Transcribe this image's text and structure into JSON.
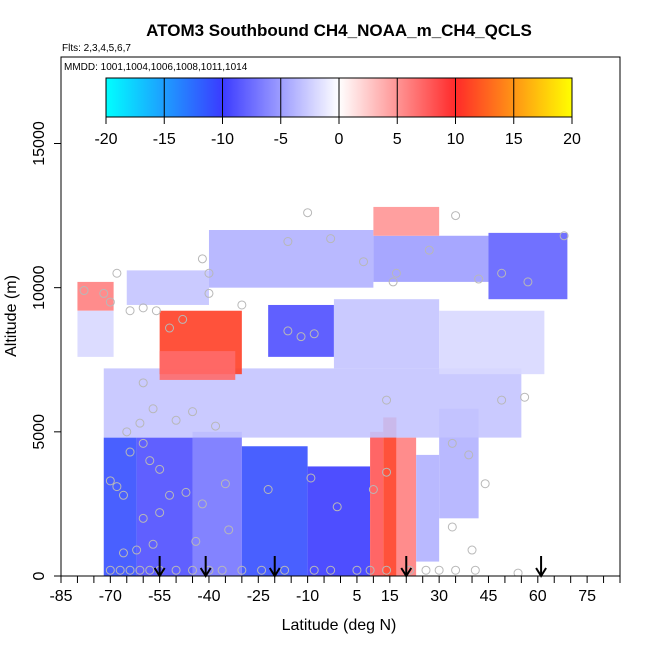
{
  "chart_data": {
    "type": "heatmap",
    "title": "ATOM3 Southbound CH4_NOAA_m_CH4_QCLS",
    "subtitle": "Flts: 2,3,4,5,6,7",
    "annotation": "MMDD: 1001,1004,1006,1008,1011,1014",
    "xlabel": "Latitude (deg N)",
    "ylabel": "Altitude (m)",
    "xlim": [
      -85,
      85
    ],
    "ylim": [
      0,
      18000
    ],
    "x_ticks": [
      -85,
      -70,
      -55,
      -40,
      -25,
      -10,
      5,
      15,
      30,
      45,
      60,
      75
    ],
    "y_ticks": [
      0,
      5000,
      10000,
      15000
    ],
    "colorbar": {
      "min": -20,
      "max": 20,
      "ticks": [
        -20,
        -15,
        -10,
        -5,
        0,
        5,
        10,
        15,
        20
      ],
      "colors": [
        "#00ffff",
        "#3b3bff",
        "#ffffff",
        "#ff2a2a",
        "#ffff00"
      ]
    },
    "arrow_latitudes": [
      -55,
      -41,
      -20,
      20,
      61
    ],
    "cells": [
      {
        "lat0": -80,
        "lat1": -69,
        "alt0": 9200,
        "alt1": 10200,
        "value": 6
      },
      {
        "lat0": -80,
        "lat1": -69,
        "alt0": 7600,
        "alt1": 9200,
        "value": -2
      },
      {
        "lat0": -72,
        "lat1": -62,
        "alt0": 0,
        "alt1": 4800,
        "value": -11
      },
      {
        "lat0": -62,
        "lat1": -45,
        "alt0": 0,
        "alt1": 4800,
        "value": -9
      },
      {
        "lat0": -45,
        "lat1": -30,
        "alt0": 0,
        "alt1": 5000,
        "value": -7
      },
      {
        "lat0": -30,
        "lat1": -10,
        "alt0": 0,
        "alt1": 4500,
        "value": -11
      },
      {
        "lat0": -10,
        "lat1": 9,
        "alt0": 0,
        "alt1": 3800,
        "value": -10
      },
      {
        "lat0": 9,
        "lat1": 13,
        "alt0": 0,
        "alt1": 5000,
        "value": 8
      },
      {
        "lat0": 13,
        "lat1": 17,
        "alt0": 0,
        "alt1": 5500,
        "value": 11
      },
      {
        "lat0": 17,
        "lat1": 23,
        "alt0": 0,
        "alt1": 4800,
        "value": 6
      },
      {
        "lat0": 23,
        "lat1": 30,
        "alt0": 500,
        "alt1": 4200,
        "value": -4
      },
      {
        "lat0": 30,
        "lat1": 42,
        "alt0": 2000,
        "alt1": 5800,
        "value": -4
      },
      {
        "lat0": -72,
        "lat1": 55,
        "alt0": 4800,
        "alt1": 7200,
        "value": -3
      },
      {
        "lat0": -55,
        "lat1": -30,
        "alt0": 7000,
        "alt1": 9200,
        "value": 11
      },
      {
        "lat0": -55,
        "lat1": -32,
        "alt0": 6800,
        "alt1": 7800,
        "value": 7
      },
      {
        "lat0": -22,
        "lat1": -2,
        "alt0": 7600,
        "alt1": 9400,
        "value": -9
      },
      {
        "lat0": -2,
        "lat1": 30,
        "alt0": 7200,
        "alt1": 9600,
        "value": -3
      },
      {
        "lat0": 30,
        "lat1": 62,
        "alt0": 7000,
        "alt1": 9200,
        "value": -2
      },
      {
        "lat0": -65,
        "lat1": -40,
        "alt0": 9400,
        "alt1": 10600,
        "value": -3
      },
      {
        "lat0": -40,
        "lat1": 10,
        "alt0": 10000,
        "alt1": 12000,
        "value": -4
      },
      {
        "lat0": 10,
        "lat1": 45,
        "alt0": 10200,
        "alt1": 11800,
        "value": -5
      },
      {
        "lat0": 45,
        "lat1": 69,
        "alt0": 9600,
        "alt1": 11900,
        "value": -8
      },
      {
        "lat0": 10,
        "lat1": 30,
        "alt0": 11800,
        "alt1": 12800,
        "value": 5
      }
    ],
    "points": [
      [
        -78,
        9900
      ],
      [
        -72,
        9800
      ],
      [
        -70,
        9500
      ],
      [
        -68,
        10500
      ],
      [
        -64,
        9200
      ],
      [
        -60,
        9300
      ],
      [
        -56,
        9200
      ],
      [
        -52,
        8600
      ],
      [
        -48,
        8900
      ],
      [
        -40,
        10500
      ],
      [
        -42,
        11000
      ],
      [
        -16,
        11600
      ],
      [
        -10,
        12600
      ],
      [
        -3,
        11700
      ],
      [
        7,
        10900
      ],
      [
        17,
        10500
      ],
      [
        27,
        11300
      ],
      [
        35,
        12500
      ],
      [
        42,
        10300
      ],
      [
        49,
        10500
      ],
      [
        57,
        10200
      ],
      [
        68,
        11800
      ],
      [
        -40,
        9800
      ],
      [
        -30,
        9400
      ],
      [
        -16,
        8500
      ],
      [
        -12,
        8300
      ],
      [
        -8,
        8400
      ],
      [
        16,
        10200
      ],
      [
        -60,
        6700
      ],
      [
        -57,
        5800
      ],
      [
        -50,
        5400
      ],
      [
        -45,
        5700
      ],
      [
        -38,
        5200
      ],
      [
        -61,
        5300
      ],
      [
        -65,
        5000
      ],
      [
        -60,
        4600
      ],
      [
        -64,
        4300
      ],
      [
        -58,
        4000
      ],
      [
        -55,
        3700
      ],
      [
        -70,
        3300
      ],
      [
        -68,
        3100
      ],
      [
        -66,
        2800
      ],
      [
        -52,
        2800
      ],
      [
        -47,
        2900
      ],
      [
        -42,
        2500
      ],
      [
        -35,
        3200
      ],
      [
        -22,
        3000
      ],
      [
        -9,
        3400
      ],
      [
        -1,
        2400
      ],
      [
        10,
        3000
      ],
      [
        14,
        3600
      ],
      [
        14,
        6100
      ],
      [
        34,
        4600
      ],
      [
        39,
        4200
      ],
      [
        44,
        3200
      ],
      [
        49,
        6100
      ],
      [
        56,
        6200
      ],
      [
        -60,
        2000
      ],
      [
        -55,
        2200
      ],
      [
        34,
        1700
      ],
      [
        40,
        900
      ],
      [
        -70,
        200
      ],
      [
        -67,
        200
      ],
      [
        -64,
        200
      ],
      [
        -61,
        200
      ],
      [
        -58,
        200
      ],
      [
        -55,
        200
      ],
      [
        -50,
        200
      ],
      [
        -45,
        200
      ],
      [
        -40,
        200
      ],
      [
        -36,
        200
      ],
      [
        -30,
        200
      ],
      [
        -24,
        200
      ],
      [
        -17,
        200
      ],
      [
        -8,
        200
      ],
      [
        -3,
        200
      ],
      [
        5,
        200
      ],
      [
        9,
        200
      ],
      [
        14,
        200
      ],
      [
        21,
        200
      ],
      [
        26,
        200
      ],
      [
        30,
        200
      ],
      [
        35,
        200
      ],
      [
        41,
        200
      ],
      [
        54,
        100
      ],
      [
        -66,
        800
      ],
      [
        -62,
        900
      ],
      [
        -57,
        1100
      ],
      [
        -44,
        1200
      ],
      [
        -34,
        1600
      ]
    ]
  }
}
